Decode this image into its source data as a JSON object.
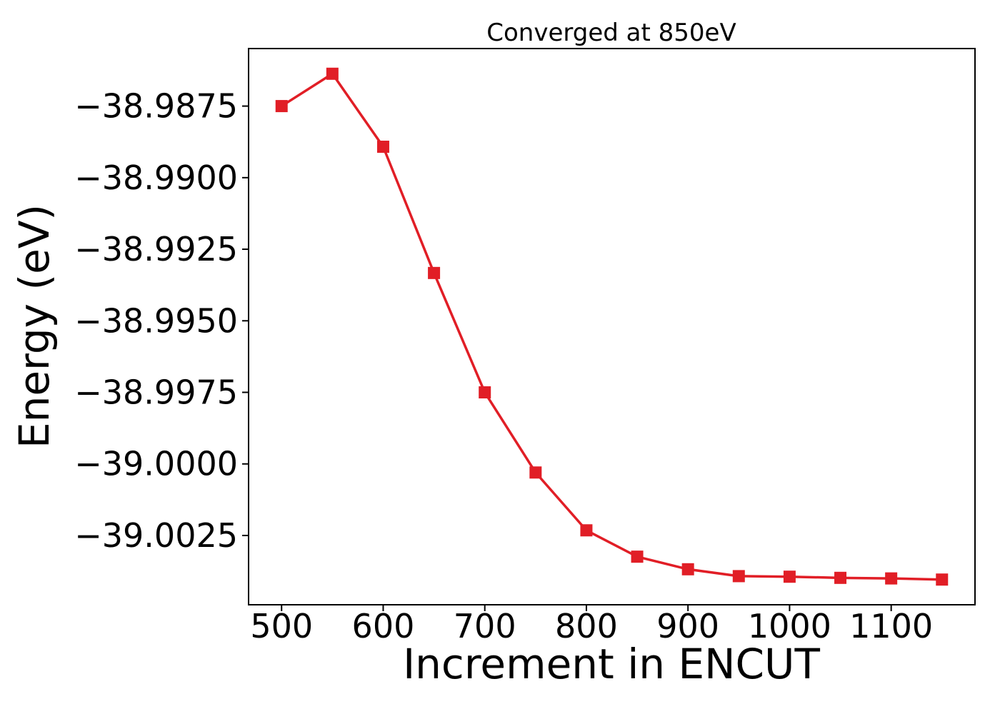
{
  "chart_data": {
    "type": "line",
    "title": "Converged at 850eV",
    "xlabel": "Increment in ENCUT",
    "ylabel": "Energy (eV)",
    "legend": "none",
    "grid": false,
    "marker": "square",
    "line_color": "#e11e26",
    "axis_color": "#000000",
    "x": [
      500,
      550,
      600,
      650,
      700,
      750,
      800,
      850,
      900,
      950,
      1000,
      1050,
      1100,
      1150
    ],
    "values": [
      -38.9875,
      -38.98637,
      -38.98892,
      -38.99333,
      -38.9975,
      -39.0003,
      -39.00232,
      -39.00324,
      -39.00368,
      -39.00392,
      -39.00394,
      -39.00398,
      -39.004,
      -39.00404
    ],
    "x_ticks": [
      500,
      600,
      700,
      800,
      900,
      1000,
      1100
    ],
    "y_ticks": [
      -38.9875,
      -38.99,
      -38.9925,
      -38.995,
      -38.9975,
      -39.0,
      -39.0025
    ],
    "xlim": [
      467.5,
      1182.5
    ],
    "ylim": [
      -39.00492,
      -38.98549
    ]
  }
}
